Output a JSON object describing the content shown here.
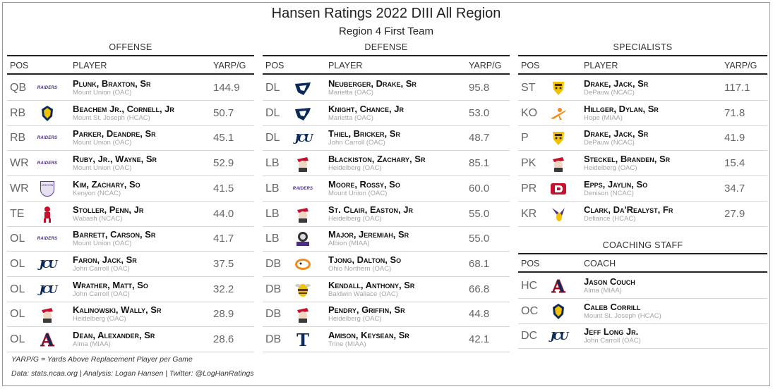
{
  "title": "Hansen Ratings 2022 DIII All Region",
  "subtitle": "Region 4 First Team",
  "headers": {
    "pos": "POS",
    "player": "PLAYER",
    "value": "YARP/G",
    "coach": "COACH"
  },
  "offense": {
    "title": "OFFENSE",
    "rows": [
      {
        "pos": "QB",
        "name": "Plunk, Braxton, Sr",
        "school": "Mount Union (OAC)",
        "value": "144.9",
        "logo": "raiders-logo"
      },
      {
        "pos": "RB",
        "name": "Beachem Jr., Cornell, Jr",
        "school": "Mount St. Joseph (HCAC)",
        "value": "50.7",
        "logo": "lion-logo"
      },
      {
        "pos": "RB",
        "name": "Parker, Deandre, Sr",
        "school": "Mount Union (OAC)",
        "value": "45.1",
        "logo": "raiders-logo"
      },
      {
        "pos": "WR",
        "name": "Ruby, Jr., Wayne, Sr",
        "school": "Mount Union (OAC)",
        "value": "52.9",
        "logo": "raiders-logo"
      },
      {
        "pos": "WR",
        "name": "Kim, Zachary, So",
        "school": "Kenyon (NCAC)",
        "value": "41.5",
        "logo": "kenyon-shield-logo"
      },
      {
        "pos": "TE",
        "name": "Stoller, Penn, Jr",
        "school": "Wabash (NCAC)",
        "value": "44.0",
        "logo": "caveman-logo"
      },
      {
        "pos": "OL",
        "name": "Barrett, Carson, Sr",
        "school": "Mount Union (OAC)",
        "value": "41.7",
        "logo": "raiders-logo"
      },
      {
        "pos": "OL",
        "name": "Faron, Jack, Sr",
        "school": "John Carroll (OAC)",
        "value": "37.5",
        "logo": "jcu-logo"
      },
      {
        "pos": "OL",
        "name": "Wrather, Matt, So",
        "school": "John Carroll (OAC)",
        "value": "32.2",
        "logo": "jcu-logo"
      },
      {
        "pos": "OL",
        "name": "Kalinowski, Wally, Sr",
        "school": "Heidelberg (OAC)",
        "value": "28.9",
        "logo": "student-prince-logo"
      },
      {
        "pos": "OL",
        "name": "Dean, Alexander, Sr",
        "school": "Alma (MIAA)",
        "value": "28.6",
        "logo": "alma-a-logo"
      }
    ]
  },
  "defense": {
    "title": "DEFENSE",
    "rows": [
      {
        "pos": "DL",
        "name": "Neuberger, Drake, Sr",
        "school": "Marietta (OAC)",
        "value": "95.8",
        "logo": "pioneer-logo"
      },
      {
        "pos": "DL",
        "name": "Knight, Chance, Jr",
        "school": "Marietta (OAC)",
        "value": "53.0",
        "logo": "pioneer-logo"
      },
      {
        "pos": "DL",
        "name": "Thiel, Bricker, Sr",
        "school": "John Carroll (OAC)",
        "value": "48.7",
        "logo": "jcu-logo"
      },
      {
        "pos": "LB",
        "name": "Blackiston, Zachary, Sr",
        "school": "Heidelberg (OAC)",
        "value": "85.1",
        "logo": "student-prince-logo"
      },
      {
        "pos": "LB",
        "name": "Moore, Rossy, So",
        "school": "Mount Union (OAC)",
        "value": "60.0",
        "logo": "raiders-logo"
      },
      {
        "pos": "LB",
        "name": "St. Clair, Easton, Jr",
        "school": "Heidelberg (OAC)",
        "value": "55.0",
        "logo": "student-prince-logo"
      },
      {
        "pos": "LB",
        "name": "Major, Jeremiah, Sr",
        "school": "Albion (MIAA)",
        "value": "55.0",
        "logo": "britons-logo"
      },
      {
        "pos": "DB",
        "name": "Tjong, Dalton, So",
        "school": "Ohio Northern (OAC)",
        "value": "68.1",
        "logo": "polar-bear-logo"
      },
      {
        "pos": "DB",
        "name": "Kendall, Anthony, Sr",
        "school": "Baldwin Wallace (OAC)",
        "value": "66.8",
        "logo": "yellow-jacket-logo"
      },
      {
        "pos": "DB",
        "name": "Pendry, Griffin, Sr",
        "school": "Heidelberg (OAC)",
        "value": "44.8",
        "logo": "student-prince-logo"
      },
      {
        "pos": "DB",
        "name": "Amison, Keysean, Sr",
        "school": "Trine (MIAA)",
        "value": "42.1",
        "logo": "trine-t-logo"
      }
    ]
  },
  "specialists": {
    "title": "SPECIALISTS",
    "rows": [
      {
        "pos": "ST",
        "name": "Drake, Jack, Sr",
        "school": "DePauw (NCAC)",
        "value": "117.1",
        "logo": "tiger-logo"
      },
      {
        "pos": "KO",
        "name": "Hillger, Dylan, Sr",
        "school": "Hope (MIAA)",
        "value": "71.8",
        "logo": "flying-dutchman-logo"
      },
      {
        "pos": "P",
        "name": "Drake, Jack, Sr",
        "school": "DePauw (NCAC)",
        "value": "41.9",
        "logo": "tiger-logo"
      },
      {
        "pos": "PK",
        "name": "Steckel, Branden, Sr",
        "school": "Heidelberg (OAC)",
        "value": "15.4",
        "logo": "student-prince-logo"
      },
      {
        "pos": "PR",
        "name": "Epps, Jaylin, So",
        "school": "Denison (NCAC)",
        "value": "34.7",
        "logo": "denison-d-logo"
      },
      {
        "pos": "KR",
        "name": "Clark, Da'Realyst, Fr",
        "school": "Defiance (HCAC)",
        "value": "27.9",
        "logo": "yellow-jacket-purple-logo"
      }
    ]
  },
  "coaching": {
    "title": "COACHING STAFF",
    "rows": [
      {
        "pos": "HC",
        "name": "Jason Couch",
        "school": "Alma (MIAA)",
        "logo": "alma-a-logo"
      },
      {
        "pos": "OC",
        "name": "Caleb Corrill",
        "school": "Mount St. Joseph (HCAC)",
        "logo": "lion-logo"
      },
      {
        "pos": "DC",
        "name": "Jeff Long Jr.",
        "school": "John Carroll (OAC)",
        "logo": "jcu-logo"
      }
    ]
  },
  "footnotes": {
    "definition": "YARP/G = Yards Above Replacement Player per Game",
    "credits": "Data: stats.ncaa.org | Analysis: Logan Hansen | Twitter: @LogHanRatings"
  },
  "colors": {
    "mount_union_purple": "#4b2e83",
    "navy": "#0b2a5b",
    "heidelberg_red": "#c8102e",
    "gold": "#f2c200",
    "orange": "#f08a1c"
  }
}
